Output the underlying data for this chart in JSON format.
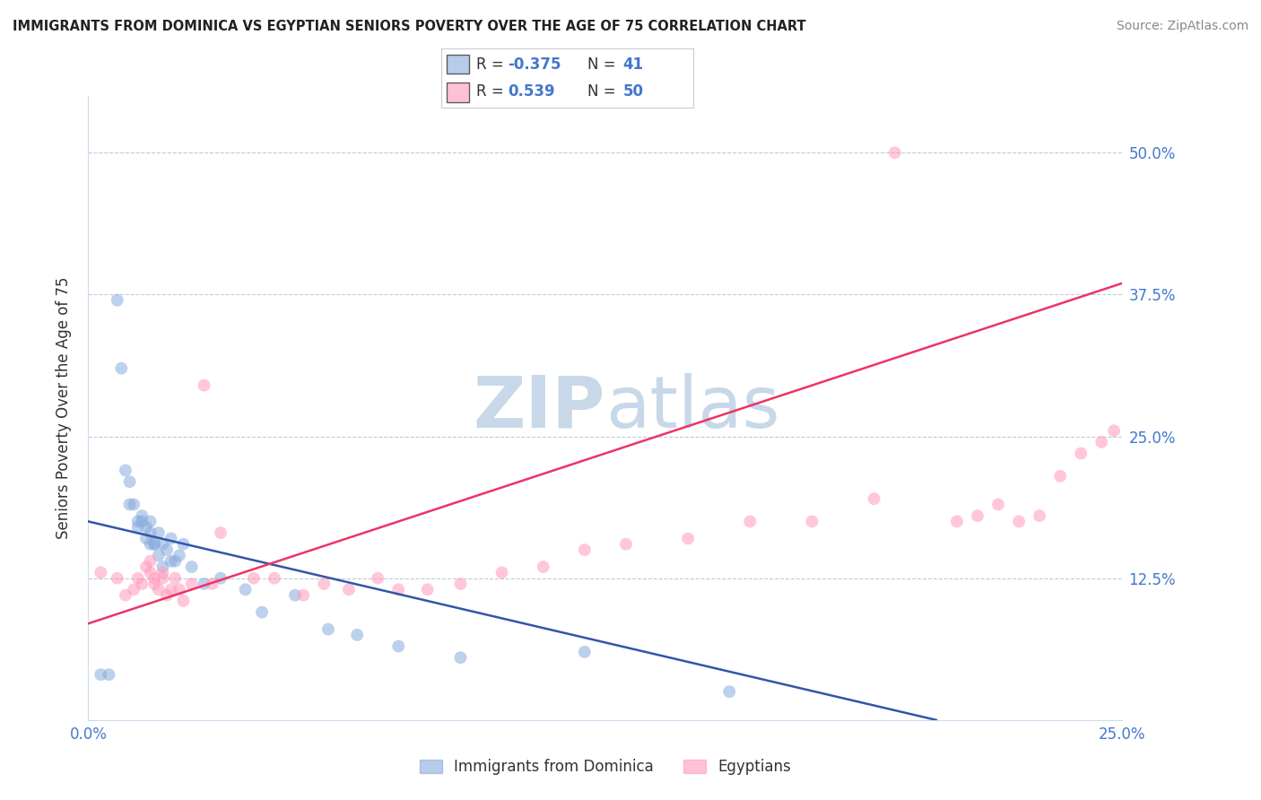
{
  "title": "IMMIGRANTS FROM DOMINICA VS EGYPTIAN SENIORS POVERTY OVER THE AGE OF 75 CORRELATION CHART",
  "source": "Source: ZipAtlas.com",
  "ylabel": "Seniors Poverty Over the Age of 75",
  "xlim": [
    0.0,
    0.25
  ],
  "ylim": [
    0.0,
    0.55
  ],
  "xtick_labels": [
    "0.0%",
    "25.0%"
  ],
  "ytick_labels": [
    "12.5%",
    "25.0%",
    "37.5%",
    "50.0%"
  ],
  "ytick_values": [
    0.125,
    0.25,
    0.375,
    0.5
  ],
  "xtick_values": [
    0.0,
    0.25
  ],
  "blue_color": "#88AADD",
  "pink_color": "#FF99BB",
  "line_blue": "#3355AA",
  "line_pink": "#EE3366",
  "watermark_color": "#C8D8E8",
  "blue_scatter_x": [
    0.003,
    0.005,
    0.007,
    0.008,
    0.009,
    0.01,
    0.01,
    0.011,
    0.012,
    0.012,
    0.013,
    0.013,
    0.014,
    0.014,
    0.015,
    0.015,
    0.015,
    0.016,
    0.016,
    0.017,
    0.017,
    0.018,
    0.018,
    0.019,
    0.02,
    0.02,
    0.021,
    0.022,
    0.023,
    0.025,
    0.028,
    0.032,
    0.038,
    0.042,
    0.05,
    0.058,
    0.065,
    0.075,
    0.09,
    0.12,
    0.155
  ],
  "blue_scatter_y": [
    0.04,
    0.04,
    0.37,
    0.31,
    0.22,
    0.21,
    0.19,
    0.19,
    0.175,
    0.17,
    0.18,
    0.175,
    0.17,
    0.16,
    0.175,
    0.165,
    0.155,
    0.155,
    0.155,
    0.165,
    0.145,
    0.155,
    0.135,
    0.15,
    0.14,
    0.16,
    0.14,
    0.145,
    0.155,
    0.135,
    0.12,
    0.125,
    0.115,
    0.095,
    0.11,
    0.08,
    0.075,
    0.065,
    0.055,
    0.06,
    0.025
  ],
  "pink_scatter_x": [
    0.003,
    0.007,
    0.009,
    0.011,
    0.012,
    0.013,
    0.014,
    0.015,
    0.015,
    0.016,
    0.016,
    0.017,
    0.018,
    0.018,
    0.019,
    0.02,
    0.021,
    0.022,
    0.023,
    0.025,
    0.028,
    0.03,
    0.032,
    0.04,
    0.045,
    0.052,
    0.057,
    0.063,
    0.07,
    0.075,
    0.082,
    0.09,
    0.1,
    0.11,
    0.12,
    0.13,
    0.145,
    0.16,
    0.175,
    0.19,
    0.195,
    0.21,
    0.215,
    0.22,
    0.225,
    0.23,
    0.235,
    0.24,
    0.245,
    0.248
  ],
  "pink_scatter_y": [
    0.13,
    0.125,
    0.11,
    0.115,
    0.125,
    0.12,
    0.135,
    0.13,
    0.14,
    0.12,
    0.125,
    0.115,
    0.125,
    0.13,
    0.11,
    0.115,
    0.125,
    0.115,
    0.105,
    0.12,
    0.295,
    0.12,
    0.165,
    0.125,
    0.125,
    0.11,
    0.12,
    0.115,
    0.125,
    0.115,
    0.115,
    0.12,
    0.13,
    0.135,
    0.15,
    0.155,
    0.16,
    0.175,
    0.175,
    0.195,
    0.5,
    0.175,
    0.18,
    0.19,
    0.175,
    0.18,
    0.215,
    0.235,
    0.245,
    0.255
  ],
  "blue_line_x": [
    0.0,
    0.205
  ],
  "blue_line_y": [
    0.175,
    0.0
  ],
  "pink_line_x": [
    0.0,
    0.25
  ],
  "pink_line_y": [
    0.085,
    0.385
  ]
}
